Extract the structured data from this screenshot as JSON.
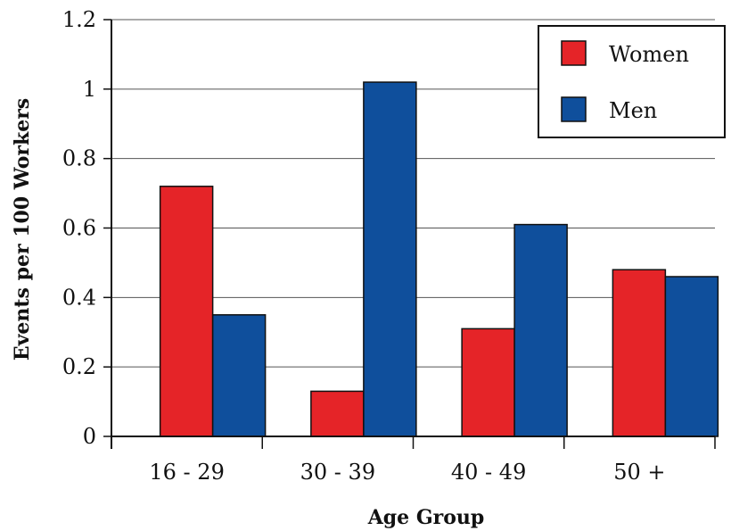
{
  "chart_data": {
    "type": "bar",
    "title": "",
    "xlabel": "Age Group",
    "ylabel": "Events per 100 Workers",
    "categories": [
      "16 - 29",
      "30 - 39",
      "40 - 49",
      "50 +"
    ],
    "series": [
      {
        "name": "Women",
        "color": "#e52428",
        "values": [
          0.72,
          0.13,
          0.31,
          0.48
        ]
      },
      {
        "name": "Men",
        "color": "#0f4f9c",
        "values": [
          0.35,
          1.02,
          0.61,
          0.46
        ]
      }
    ],
    "ylim": [
      0,
      1.2
    ],
    "yticks": [
      0,
      0.2,
      0.4,
      0.6,
      0.8,
      1,
      1.2
    ],
    "ytick_labels": [
      "0",
      "0.2",
      "0.4",
      "0.6",
      "0.8",
      "1",
      "1.2"
    ],
    "grid": true,
    "legend_position": "top-right"
  }
}
